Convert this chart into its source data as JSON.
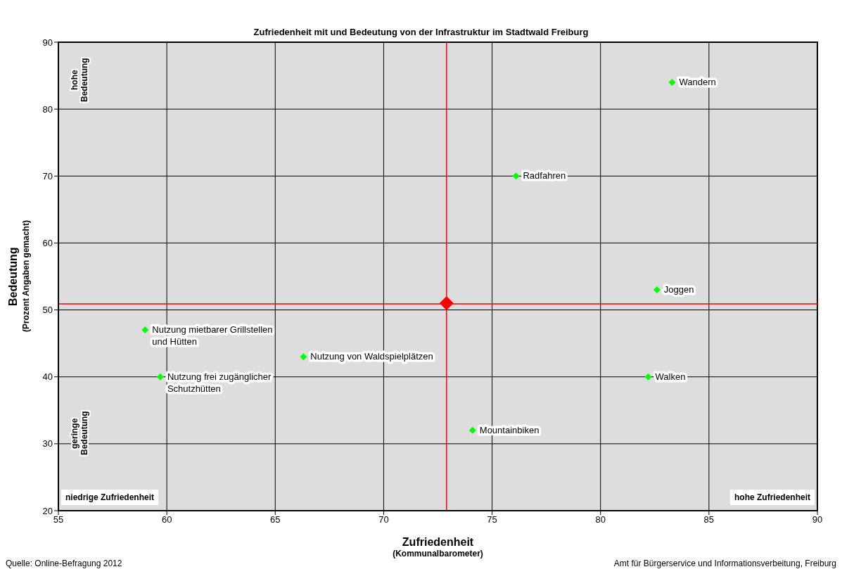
{
  "chart_data": {
    "type": "scatter",
    "title": "Zufriedenheit mit und Bedeutung von der Infrastruktur im Stadtwald Freiburg",
    "xlabel": "Zufriedenheit\n(Kommunalbarometer)",
    "ylabel": "Bedeutung\n(Prozent Angaben gemacht)",
    "xlim": [
      55,
      90
    ],
    "xticks": [
      55,
      60,
      65,
      70,
      75,
      80,
      85,
      90
    ],
    "ylim": [
      20,
      90
    ],
    "yticks": [
      20,
      30,
      40,
      50,
      60,
      70,
      80,
      90
    ],
    "grid": true,
    "legend": false,
    "marker": "diamond",
    "series": [
      {
        "name": "Wandern",
        "color": "#00ff00",
        "x": [
          83.3
        ],
        "values": [
          84
        ]
      },
      {
        "name": "Radfahren",
        "color": "#00ff00",
        "x": [
          76.1
        ],
        "values": [
          70
        ]
      },
      {
        "name": "Joggen",
        "color": "#00ff00",
        "x": [
          82.6
        ],
        "values": [
          53
        ]
      },
      {
        "name": "Walken",
        "color": "#00ff00",
        "x": [
          82.2
        ],
        "values": [
          40
        ]
      },
      {
        "name": "Mountainbiken",
        "color": "#00ff00",
        "x": [
          74.1
        ],
        "values": [
          32
        ]
      },
      {
        "name": "Nutzung von Waldspielplätzen",
        "color": "#00ff00",
        "x": [
          66.3
        ],
        "values": [
          43
        ]
      },
      {
        "name": "Nutzung mietbarer Grillstellen und Hütten",
        "color": "#00ff00",
        "x": [
          59.0
        ],
        "values": [
          47
        ]
      },
      {
        "name": "Nutzung frei zugänglicher Schutzhütten",
        "color": "#00ff00",
        "x": [
          59.7
        ],
        "values": [
          40
        ]
      },
      {
        "color": "#ff0000",
        "x": [
          72.9
        ],
        "values": [
          51
        ]
      }
    ],
    "ref_lines": [
      {
        "axis": "x",
        "value": 72.9,
        "color": "#ff0000"
      },
      {
        "axis": "y",
        "value": 50.9,
        "color": "#ff0000"
      }
    ],
    "annotations": [
      "hohe Bedeutung",
      "geringe Bedeutung",
      "niedrige Zufriedenheit",
      "hohe Zufriedenheit",
      "Quelle: Online-Befragung 2012",
      "Amt für Bürgerservice und Informationsverbeitung, Freiburg"
    ]
  }
}
